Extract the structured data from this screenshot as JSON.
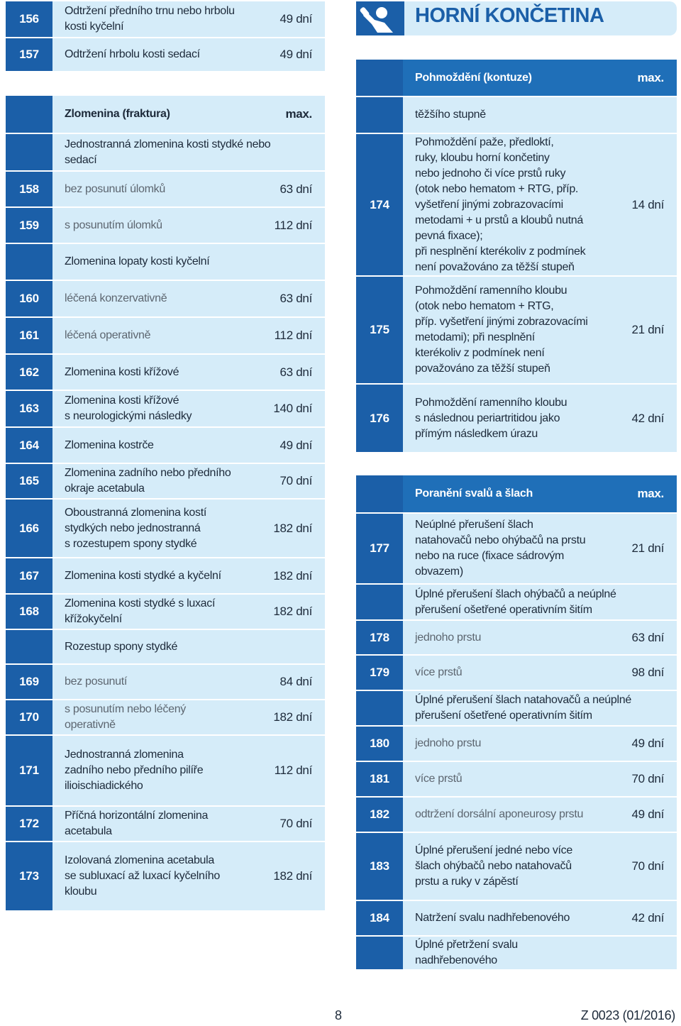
{
  "header": {
    "title": "HORNÍ KONČETINA"
  },
  "left": [
    {
      "rows": [
        {
          "number": "156",
          "text": "Odtržení předního trnu nebo hrbolu\nkosti kyčelní",
          "days": "49 dní"
        },
        {
          "number": "157",
          "text": "Odtržení hrbolu kosti sedací",
          "days": "49 dní"
        }
      ]
    },
    {
      "header": {
        "title": "Zlomenina (fraktura)",
        "max": "max."
      },
      "rows": [
        {
          "text": "Jednostranná zlomenina kosti stydké nebo\nsedací"
        },
        {
          "number": "158",
          "text": "bez posunutí úlomků",
          "days": "63 dní"
        },
        {
          "number": "159",
          "text": "s posunutím úlomků",
          "days": "112 dní"
        },
        {
          "text": "Zlomenina lopaty kosti kyčelní"
        },
        {
          "number": "160",
          "text": "léčená konzervativně",
          "days": "63 dní"
        },
        {
          "number": "161",
          "text": "léčená operativně",
          "days": "112 dní"
        },
        {
          "number": "162",
          "text": "Zlomenina kosti křížové",
          "days": "63 dní"
        },
        {
          "number": "163",
          "text": "Zlomenina kosti křížové\ns neurologickými následky",
          "days": "140 dní"
        },
        {
          "number": "164",
          "text": "Zlomenina kostrče",
          "days": "49 dní"
        },
        {
          "number": "165",
          "text": "Zlomenina zadního nebo předního\nokraje acetabula",
          "days": "70 dní"
        },
        {
          "number": "166",
          "text": "Oboustranná zlomenina kostí\nstydkých nebo jednostranná\ns rozestupem spony stydké",
          "days": "182 dní"
        },
        {
          "number": "167",
          "text": "Zlomenina kosti stydké a kyčelní",
          "days": "182 dní"
        },
        {
          "number": "168",
          "text": "Zlomenina kosti stydké s luxací\nkřížokyčelní",
          "days": "182 dní"
        },
        {
          "text": "Rozestup spony stydké"
        },
        {
          "number": "169",
          "text": "bez posunutí",
          "days": "84 dní"
        },
        {
          "number": "170",
          "text": "s posunutím nebo léčený\noperativně",
          "days": "182 dní"
        },
        {
          "number": "171",
          "text": "Jednostranná zlomenina\nzadního nebo předního pilíře\nilioischiadického",
          "days": "112 dní"
        },
        {
          "number": "172",
          "text": "Příčná horizontální zlomenina\nacetabula",
          "days": "70 dní"
        },
        {
          "number": "173",
          "text": "Izolovaná zlomenina acetabula\nse subluxací až luxací kyčelního\nkloubu",
          "days": "182 dní"
        }
      ]
    }
  ],
  "right": [
    {
      "header": {
        "title": "Pohmoždění (kontuze)",
        "max": "max."
      },
      "rows": [
        {
          "text": "těžšího stupně"
        },
        {
          "number": "174",
          "text": "Pohmoždění paže, předloktí,\nruky, kloubu horní končetiny\nnebo jednoho či více prstů ruky\n(otok nebo hematom + RTG, příp.\nvyšetření jinými zobrazovacími\nmetodami + u prstů a kloubů nutná\npevná fixace);\npři nesplnění kterékoliv z podmínek\nnení považováno za těžší stupeň",
          "days": "14 dní"
        },
        {
          "number": "175",
          "text": "Pohmoždění ramenního kloubu\n(otok nebo hematom + RTG,\npříp. vyšetření jinými zobrazovacími\nmetodami); při nesplnění\nkterékoliv z podmínek není\npovažováno za těžší stupeň",
          "days": "21 dní"
        },
        {
          "number": "176",
          "text": "Pohmoždění ramenního kloubu\ns následnou periartritidou jako\npřímým následkem úrazu",
          "days": "42 dní"
        }
      ]
    },
    {
      "header": {
        "title": "Poranění svalů a šlach",
        "max": "max."
      },
      "rows": [
        {
          "number": "177",
          "text": "Neúplné přerušení šlach\nnatahovačů nebo ohýbačů na prstu\nnebo na ruce (fixace sádrovým\nobvazem)",
          "days": "21 dní"
        },
        {
          "text": "Úplné přerušení šlach ohýbačů a neúplné\npřerušení ošetřené operativním šitím"
        },
        {
          "number": "178",
          "text": "jednoho prstu",
          "days": "63 dní"
        },
        {
          "number": "179",
          "text": "více prstů",
          "days": "98 dní"
        },
        {
          "text": "Úplné přerušení šlach natahovačů a neúplné\npřerušení ošetřené operativním šitím"
        },
        {
          "number": "180",
          "text": "jednoho prstu",
          "days": "49 dní"
        },
        {
          "number": "181",
          "text": "více prstů",
          "days": "70 dní"
        },
        {
          "number": "182",
          "text": "odtržení dorsální aponeurosy prstu",
          "days": "49 dní"
        },
        {
          "number": "183",
          "text": "Úplné přerušení jedné nebo více\nšlach ohýbačů nebo natahovačů\nprstu a ruky v zápěstí",
          "days": "70 dní"
        },
        {
          "number": "184",
          "text": "Natržení svalu nadhřebenového",
          "days": "42 dní"
        },
        {
          "text": "Úplné přetržení svalu\nnadhřebenového"
        }
      ]
    }
  ],
  "footer": {
    "page": "8",
    "code": "Z 0023 (01/2016)"
  }
}
